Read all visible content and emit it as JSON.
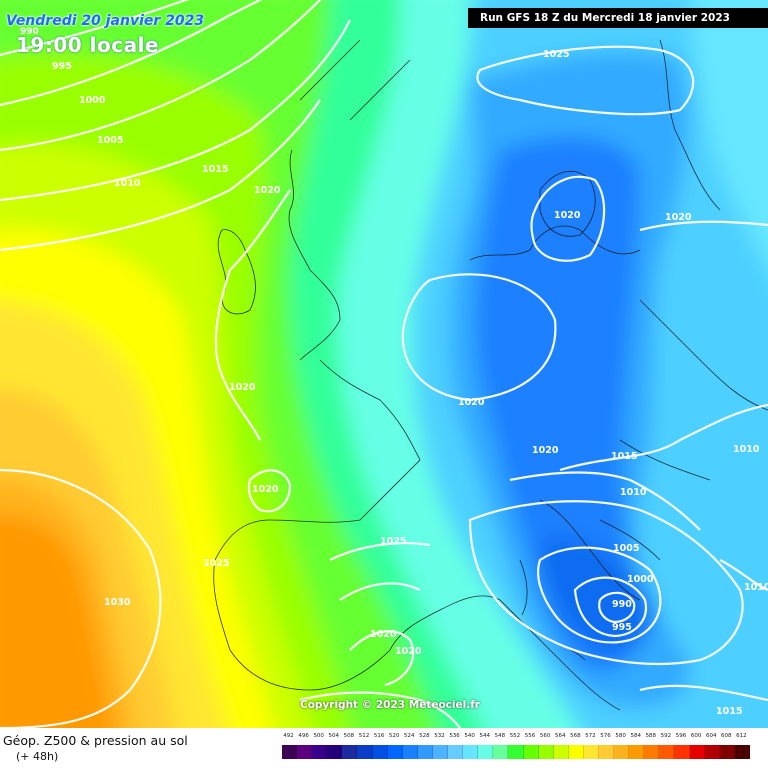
{
  "header": {
    "date": "Vendredi 20 janvier 2023",
    "time": "19:00 locale",
    "corner_value": "990",
    "run": "Run GFS 18 Z du Mercredi 18 janvier 2023"
  },
  "copyright": "Copyright © 2023 Meteociel.fr",
  "footer": {
    "caption": "Géop. Z500 & pression au sol",
    "subcaption": "(+ 48h)"
  },
  "legend": {
    "values": [
      "492",
      "496",
      "500",
      "504",
      "508",
      "512",
      "516",
      "520",
      "524",
      "528",
      "532",
      "536",
      "540",
      "544",
      "548",
      "552",
      "556",
      "560",
      "564",
      "568",
      "572",
      "576",
      "580",
      "584",
      "588",
      "592",
      "596",
      "600",
      "604",
      "608",
      "612"
    ],
    "colors": [
      "#3d0057",
      "#5a0080",
      "#3a008c",
      "#22007a",
      "#1d2aa0",
      "#0a3cc8",
      "#0050e6",
      "#0066ff",
      "#1a80ff",
      "#3399ff",
      "#4db3ff",
      "#66ccff",
      "#66e6ff",
      "#66ffe6",
      "#66ff99",
      "#33ff33",
      "#66ff00",
      "#99ff00",
      "#ccff00",
      "#ffff00",
      "#ffe633",
      "#ffcc33",
      "#ffb31a",
      "#ff9900",
      "#ff7a00",
      "#ff5a00",
      "#ff3300",
      "#e60000",
      "#b30000",
      "#800000",
      "#4d0000"
    ]
  },
  "isobars": [
    {
      "id": "l995",
      "text": "995"
    },
    {
      "id": "l1000",
      "text": "1000"
    },
    {
      "id": "l1005a",
      "text": "1005"
    },
    {
      "id": "l1010a",
      "text": "1010"
    },
    {
      "id": "l1015a",
      "text": "1015"
    },
    {
      "id": "l1020a",
      "text": "1020"
    },
    {
      "id": "l1025a",
      "text": "1025"
    },
    {
      "id": "l1020b",
      "text": "1020"
    },
    {
      "id": "l1020c",
      "text": "1020"
    },
    {
      "id": "l1020d",
      "text": "1020"
    },
    {
      "id": "l1020e",
      "text": "1020"
    },
    {
      "id": "l1020f",
      "text": "1020"
    },
    {
      "id": "l1015b",
      "text": "1015"
    },
    {
      "id": "l1010b",
      "text": "1010"
    },
    {
      "id": "l1010c",
      "text": "1010"
    },
    {
      "id": "l1025b",
      "text": "1025"
    },
    {
      "id": "l1025c",
      "text": "1025"
    },
    {
      "id": "l1030",
      "text": "1030"
    },
    {
      "id": "l1020g",
      "text": "1020"
    },
    {
      "id": "l1020h",
      "text": "1020"
    },
    {
      "id": "l1005b",
      "text": "1005"
    },
    {
      "id": "l1000b",
      "text": "1000"
    },
    {
      "id": "l990",
      "text": "990"
    },
    {
      "id": "l995b",
      "text": "995"
    },
    {
      "id": "l1010d",
      "text": "1010"
    },
    {
      "id": "l1015c",
      "text": "1015"
    },
    {
      "id": "l1020i",
      "text": "1020"
    }
  ]
}
